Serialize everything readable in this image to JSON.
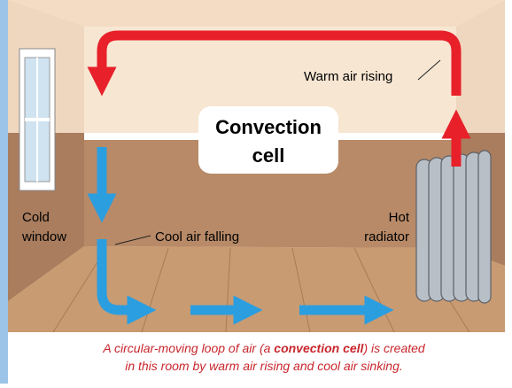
{
  "diagram": {
    "labels": {
      "cell_title": [
        "Convection",
        "cell"
      ],
      "warm": "Warm air rising",
      "cold": [
        "Cold",
        "window"
      ],
      "cool": "Cool air falling",
      "hot": [
        "Hot",
        "radiator"
      ]
    },
    "caption": {
      "line1": [
        "A circular-moving loop of air (a ",
        "convection cell",
        ") is created"
      ],
      "line2": "in this room by warm air rising and cool air sinking."
    }
  }
}
